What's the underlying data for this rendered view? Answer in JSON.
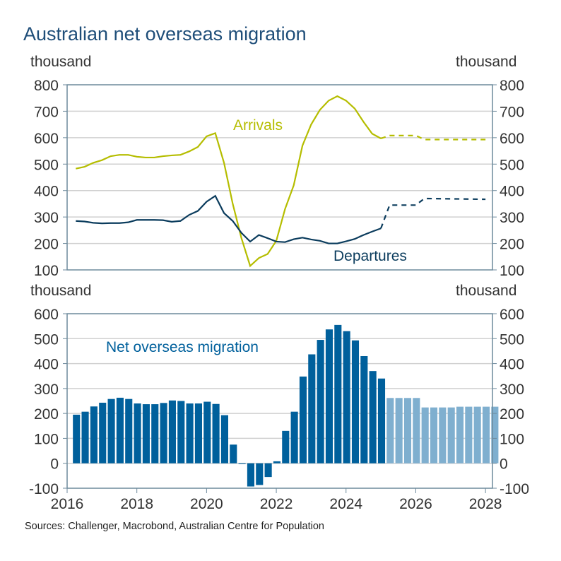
{
  "title": "Australian net overseas migration",
  "source": "Sources: Challenger, Macrobond, Australian Centre for Population",
  "colors": {
    "arrivals": "#b5bd00",
    "departures": "#0b3c5d",
    "net_actual": "#00609c",
    "net_forecast": "#7fafcf",
    "grid": "#d0d0d0",
    "axis": "#6d8a9c"
  },
  "chart_data": [
    {
      "type": "line",
      "title": "Arrivals and departures",
      "ylabel_left": "thousand",
      "ylabel_right": "thousand",
      "ylim": [
        100,
        800
      ],
      "yticks": [
        100,
        200,
        300,
        400,
        500,
        600,
        700,
        800
      ],
      "xlim": [
        2016,
        2028.2
      ],
      "grid": true,
      "series": [
        {
          "name": "Arrivals",
          "label": "Arrivals",
          "x_start": 2016.25,
          "step": 0.25,
          "values": [
            483,
            490,
            505,
            515,
            530,
            535,
            535,
            528,
            525,
            525,
            530,
            533,
            535,
            548,
            565,
            605,
            617,
            505,
            350,
            220,
            115,
            145,
            160,
            210,
            330,
            420,
            570,
            650,
            705,
            740,
            757,
            740,
            710,
            660,
            615,
            597
          ],
          "forecast": [
            [
              2025.0,
              597
            ],
            [
              2025.25,
              608
            ],
            [
              2026.0,
              608
            ],
            [
              2026.25,
              593
            ],
            [
              2028.0,
              593
            ]
          ]
        },
        {
          "name": "Departures",
          "label": "Departures",
          "x_start": 2016.25,
          "step": 0.25,
          "values": [
            285,
            283,
            278,
            276,
            277,
            277,
            280,
            289,
            289,
            289,
            288,
            282,
            285,
            308,
            323,
            358,
            380,
            315,
            285,
            240,
            207,
            232,
            220,
            207,
            205,
            216,
            222,
            215,
            210,
            200,
            200,
            208,
            217,
            232,
            245,
            257
          ],
          "forecast": [
            [
              2025.0,
              257
            ],
            [
              2025.25,
              345
            ],
            [
              2026.0,
              345
            ],
            [
              2026.25,
              370
            ],
            [
              2028.0,
              367
            ]
          ]
        }
      ]
    },
    {
      "type": "bar",
      "title": "Net overseas migration",
      "label": "Net overseas migration",
      "ylabel_left": "thousand",
      "ylabel_right": "thousand",
      "ylim": [
        -100,
        600
      ],
      "yticks": [
        -100,
        0,
        100,
        200,
        300,
        400,
        500,
        600
      ],
      "xlim": [
        2016,
        2028.2
      ],
      "xticks": [
        "2016",
        "2018",
        "2020",
        "2022",
        "2024",
        "2026",
        "2028"
      ],
      "grid": true,
      "x_start": 2016.25,
      "step": 0.25,
      "actual": [
        195,
        207,
        228,
        243,
        258,
        263,
        258,
        240,
        237,
        237,
        242,
        252,
        250,
        240,
        240,
        247,
        238,
        193,
        75,
        -3,
        -93,
        -87,
        -55,
        8,
        130,
        207,
        348,
        437,
        495,
        537,
        555,
        530,
        493,
        430,
        370,
        340
      ],
      "forecast": [
        262,
        262,
        262,
        262,
        224,
        224,
        224,
        224,
        227,
        227,
        227,
        227,
        227
      ]
    }
  ]
}
